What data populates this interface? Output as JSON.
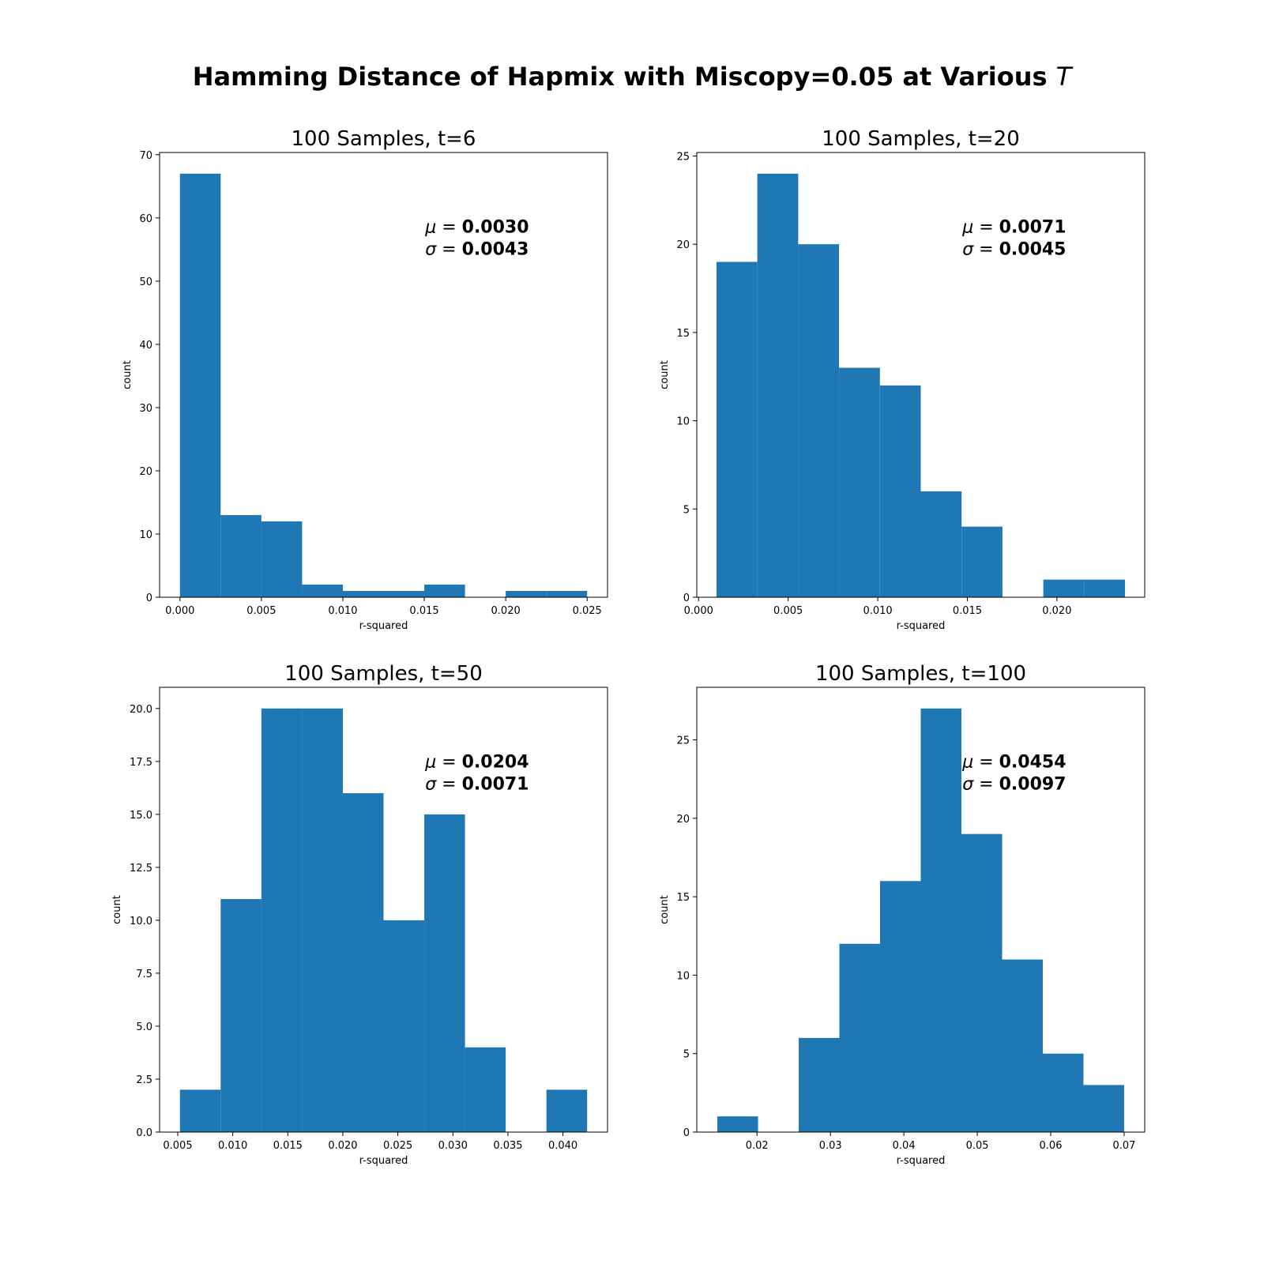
{
  "figure": {
    "title": "Hamming Distance of Hapmix with Miscopy=0.05 at Various",
    "title_symbol": "T"
  },
  "colors": {
    "bar": "#1f77b4"
  },
  "chart_data": [
    {
      "type": "bar",
      "title": "100 Samples, t=6",
      "xlabel": "r-squared",
      "ylabel": "count",
      "xlim": [
        -0.00125,
        0.02625
      ],
      "ylim": [
        0,
        70.35
      ],
      "xticks": [
        0.0,
        0.005,
        0.01,
        0.015,
        0.02,
        0.025
      ],
      "xtick_labels": [
        "0.000",
        "0.005",
        "0.010",
        "0.015",
        "0.020",
        "0.025"
      ],
      "yticks": [
        0,
        10,
        20,
        30,
        40,
        50,
        60,
        70
      ],
      "ytick_labels": [
        "0",
        "10",
        "20",
        "30",
        "40",
        "50",
        "60",
        "70"
      ],
      "bin_edges": [
        0.0,
        0.0025,
        0.005,
        0.0075,
        0.01,
        0.0125,
        0.015,
        0.0175,
        0.02,
        0.0225,
        0.025
      ],
      "counts": [
        67,
        13,
        12,
        2,
        1,
        1,
        2,
        0,
        1,
        1
      ],
      "mu_label": "0.0030",
      "sigma_label": "0.0043"
    },
    {
      "type": "bar",
      "title": "100 Samples, t=20",
      "xlabel": "r-squared",
      "ylabel": "count",
      "xlim": [
        -0.0001,
        0.0249
      ],
      "ylim": [
        0,
        25.2
      ],
      "xticks": [
        0.0,
        0.005,
        0.01,
        0.015,
        0.02
      ],
      "xtick_labels": [
        "0.000",
        "0.005",
        "0.010",
        "0.015",
        "0.020"
      ],
      "yticks": [
        0,
        5,
        10,
        15,
        20,
        25
      ],
      "ytick_labels": [
        "0",
        "5",
        "10",
        "15",
        "20",
        "25"
      ],
      "bin_edges": [
        0.001,
        0.00328,
        0.00556,
        0.00784,
        0.01012,
        0.0124,
        0.01468,
        0.01696,
        0.01924,
        0.02152,
        0.0238
      ],
      "counts": [
        19,
        24,
        20,
        13,
        12,
        6,
        4,
        0,
        1,
        1
      ],
      "mu_label": "0.0071",
      "sigma_label": "0.0045"
    },
    {
      "type": "bar",
      "title": "100 Samples, t=50",
      "xlabel": "r-squared",
      "ylabel": "count",
      "xlim": [
        0.00335,
        0.04405
      ],
      "ylim": [
        0,
        21.0
      ],
      "xticks": [
        0.005,
        0.01,
        0.015,
        0.02,
        0.025,
        0.03,
        0.035,
        0.04
      ],
      "xtick_labels": [
        "0.005",
        "0.010",
        "0.015",
        "0.020",
        "0.025",
        "0.030",
        "0.035",
        "0.040"
      ],
      "yticks": [
        0.0,
        2.5,
        5.0,
        7.5,
        10.0,
        12.5,
        15.0,
        17.5,
        20.0
      ],
      "ytick_labels": [
        "0.0",
        "2.5",
        "5.0",
        "7.5",
        "10.0",
        "12.5",
        "15.0",
        "17.5",
        "20.0"
      ],
      "bin_edges": [
        0.0052,
        0.0089,
        0.0126,
        0.0163,
        0.02,
        0.0237,
        0.0274,
        0.0311,
        0.0348,
        0.0385,
        0.0422
      ],
      "counts": [
        2,
        11,
        20,
        20,
        16,
        10,
        15,
        4,
        0,
        2
      ],
      "mu_label": "0.0204",
      "sigma_label": "0.0071"
    },
    {
      "type": "bar",
      "title": "100 Samples, t=100",
      "xlabel": "r-squared",
      "ylabel": "count",
      "xlim": [
        0.0118,
        0.0728
      ],
      "ylim": [
        0,
        28.35
      ],
      "xticks": [
        0.02,
        0.03,
        0.04,
        0.05,
        0.06,
        0.07
      ],
      "xtick_labels": [
        "0.02",
        "0.03",
        "0.04",
        "0.05",
        "0.06",
        "0.07"
      ],
      "yticks": [
        0,
        5,
        10,
        15,
        20,
        25
      ],
      "ytick_labels": [
        "0",
        "5",
        "10",
        "15",
        "20",
        "25"
      ],
      "bin_edges": [
        0.0146,
        0.02014,
        0.02568,
        0.03122,
        0.03676,
        0.0423,
        0.04784,
        0.05338,
        0.05892,
        0.06446,
        0.07
      ],
      "counts": [
        1,
        0,
        6,
        12,
        16,
        27,
        19,
        11,
        5,
        3
      ],
      "mu_label": "0.0454",
      "sigma_label": "0.0097"
    }
  ]
}
